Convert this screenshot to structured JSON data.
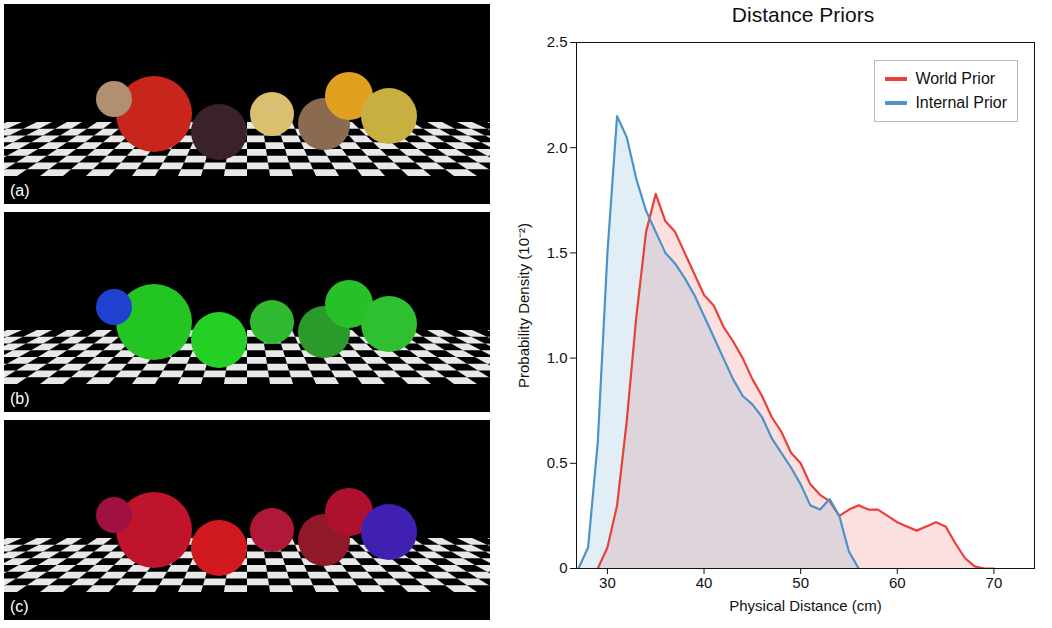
{
  "image_panels": [
    {
      "label": "(a)"
    },
    {
      "label": "(b)"
    },
    {
      "label": "(c)"
    }
  ],
  "chart_data": {
    "type": "area",
    "title": "Distance Priors",
    "x_label": "Physical Distance (cm)",
    "y_label": "Probability Density (10⁻²)",
    "x": [
      27,
      28,
      29,
      30,
      31,
      32,
      33,
      34,
      35,
      36,
      37,
      38,
      39,
      40,
      41,
      42,
      43,
      44,
      45,
      46,
      47,
      48,
      49,
      50,
      51,
      52,
      53,
      54,
      55,
      56,
      57,
      58,
      59,
      60,
      61,
      62,
      63,
      64,
      65,
      66,
      67,
      68,
      69,
      70
    ],
    "series": [
      {
        "name": "World Prior",
        "color": "#e8403a",
        "values": [
          null,
          null,
          0,
          0.1,
          0.3,
          0.7,
          1.2,
          1.6,
          1.78,
          1.65,
          1.6,
          1.5,
          1.4,
          1.3,
          1.25,
          1.15,
          1.08,
          1.0,
          0.9,
          0.82,
          0.72,
          0.65,
          0.55,
          0.5,
          0.4,
          0.35,
          0.32,
          0.25,
          0.28,
          0.3,
          0.28,
          0.28,
          0.25,
          0.22,
          0.2,
          0.18,
          0.2,
          0.22,
          0.2,
          0.12,
          0.05,
          0.01,
          0,
          0
        ]
      },
      {
        "name": "Internal Prior",
        "color": "#4b93c9",
        "values": [
          0,
          0.1,
          0.6,
          1.5,
          2.15,
          2.05,
          1.85,
          1.7,
          1.6,
          1.5,
          1.45,
          1.38,
          1.3,
          1.2,
          1.1,
          1.0,
          0.9,
          0.82,
          0.78,
          0.72,
          0.62,
          0.55,
          0.48,
          0.4,
          0.3,
          0.28,
          0.33,
          0.25,
          0.08,
          0,
          null,
          null,
          null,
          null,
          null,
          null,
          null,
          null,
          null,
          null,
          null,
          null,
          null,
          null
        ]
      }
    ],
    "xlim": [
      26.8,
      74.2
    ],
    "xticks": [
      30,
      40,
      50,
      60,
      70
    ],
    "ylim": [
      0,
      2.5
    ],
    "yticks": [
      0,
      0.5,
      {
        "value": 1,
        "label": "1.0"
      },
      1.5,
      {
        "value": 2,
        "label": "2.0"
      },
      2.5
    ],
    "legend": "top-right",
    "grid": false
  }
}
